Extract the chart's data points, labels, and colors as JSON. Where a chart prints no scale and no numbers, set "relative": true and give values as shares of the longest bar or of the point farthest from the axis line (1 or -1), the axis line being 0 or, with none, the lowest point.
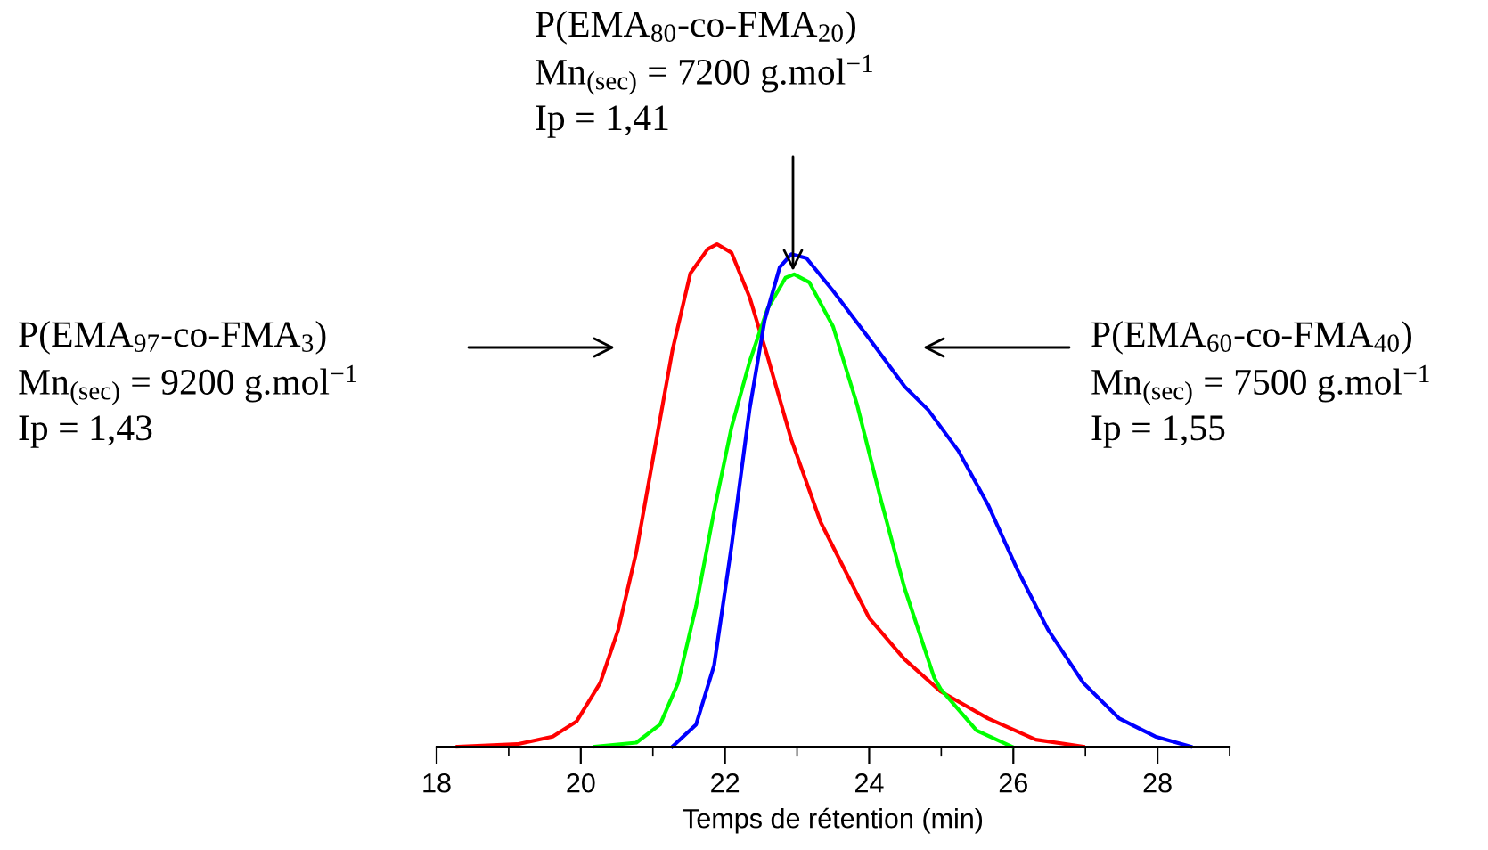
{
  "chart_data": {
    "type": "line",
    "relative": true,
    "xlabel": "Temps de rétention (min)",
    "xlim": [
      18,
      29
    ],
    "xticks": [
      18,
      {
        "value": 19,
        "label": null
      },
      20,
      {
        "value": 21,
        "label": null
      },
      22,
      {
        "value": 23,
        "label": null
      },
      24,
      {
        "value": 25,
        "label": null
      },
      26,
      {
        "value": 27,
        "label": null
      },
      28,
      {
        "value": 29,
        "label": null
      }
    ],
    "series": [
      {
        "color": "#ff0000",
        "x": [
          18.29,
          19.12,
          19.61,
          19.94,
          20.27,
          20.52,
          20.77,
          21.02,
          21.27,
          21.52,
          21.76,
          21.89,
          22.09,
          22.34,
          22.59,
          22.92,
          23.33,
          23.83,
          24.0,
          24.49,
          24.99,
          25.65,
          26.31,
          26.97
        ],
        "values": [
          0,
          0.005,
          0.02,
          0.05,
          0.127,
          0.233,
          0.387,
          0.588,
          0.788,
          0.942,
          0.99,
          1.0,
          0.983,
          0.895,
          0.777,
          0.611,
          0.446,
          0.304,
          0.256,
          0.174,
          0.11,
          0.056,
          0.014,
          0
        ]
      },
      {
        "color": "#00ff00",
        "x": [
          20.19,
          20.77,
          21.1,
          21.35,
          21.6,
          21.85,
          22.09,
          22.34,
          22.59,
          22.84,
          22.96,
          23.17,
          23.5,
          23.83,
          24.16,
          24.49,
          24.9,
          24.99,
          25.49,
          25.98
        ],
        "values": [
          0,
          0.008,
          0.044,
          0.127,
          0.28,
          0.469,
          0.635,
          0.765,
          0.871,
          0.933,
          0.94,
          0.924,
          0.836,
          0.682,
          0.493,
          0.316,
          0.138,
          0.115,
          0.032,
          0
        ]
      },
      {
        "color": "#0000ff",
        "x": [
          21.27,
          21.6,
          21.85,
          22.09,
          22.34,
          22.55,
          22.76,
          22.92,
          23.13,
          23.5,
          24.0,
          24.49,
          24.82,
          25.24,
          25.65,
          26.06,
          26.48,
          26.97,
          27.47,
          27.97,
          28.46
        ],
        "values": [
          0,
          0.044,
          0.162,
          0.398,
          0.67,
          0.848,
          0.954,
          0.98,
          0.972,
          0.907,
          0.812,
          0.717,
          0.67,
          0.588,
          0.481,
          0.351,
          0.233,
          0.127,
          0.056,
          0.02,
          0
        ]
      }
    ],
    "annotations": [
      "P(EMA$_{97}$-co-FMA$_{3}$)\nMn$_{(sec)}$ = 9200 g.mol$^{−1}$\nIp = 1,43",
      "P(EMA$_{80}$-co-FMA$_{20}$)\nMn$_{(sec)}$ = 7200 g.mol$^{−1}$\nIp = 1,41",
      "P(EMA$_{60}$-co-FMA$_{40}$)\nMn$_{(sec)}$ = 7500 g.mol$^{−1}$\nIp = 1,55"
    ]
  }
}
